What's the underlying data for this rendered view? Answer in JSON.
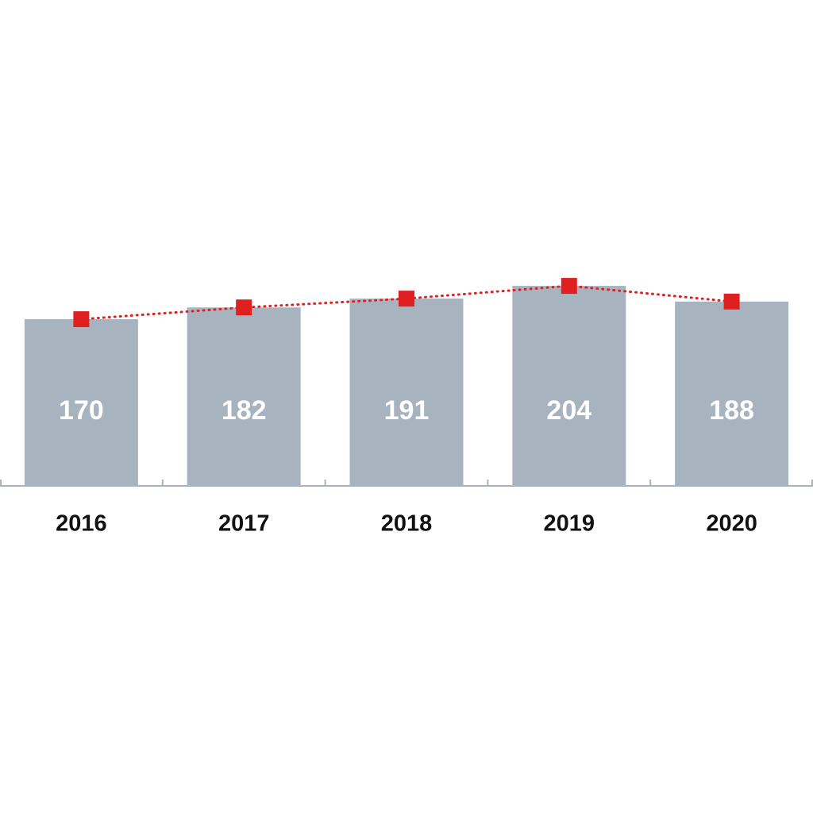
{
  "chart_data": {
    "type": "bar",
    "categories": [
      "2016",
      "2017",
      "2018",
      "2019",
      "2020"
    ],
    "series": [
      {
        "type": "bar",
        "color": "#a7b4bf",
        "values": [
          170,
          182,
          191,
          204,
          188
        ]
      },
      {
        "type": "line",
        "color": "#e02020",
        "line_style": "dotted",
        "marker": "square",
        "values": [
          170,
          182,
          191,
          204,
          188
        ]
      }
    ]
  }
}
